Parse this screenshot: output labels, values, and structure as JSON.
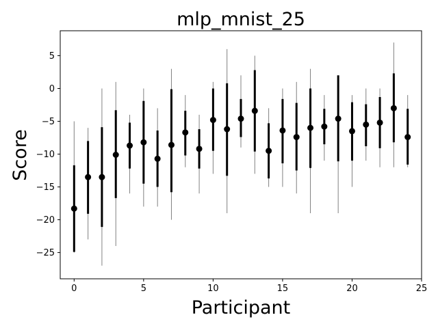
{
  "chart_data": {
    "type": "scatter",
    "title": "mlp_mnist_25",
    "xlabel": "Participant",
    "ylabel": "Score",
    "xlim": [
      -1,
      25
    ],
    "ylim": [
      -29,
      8.8
    ],
    "xticks": [
      0,
      5,
      10,
      15,
      20,
      25
    ],
    "yticks": [
      -25,
      -20,
      -15,
      -10,
      -5,
      0,
      5
    ],
    "grid": false,
    "series": [
      {
        "marker_color": "#000000",
        "range_color": "#808080",
        "iqr_color": "#000000",
        "points": [
          {
            "x": 0,
            "mean": -18.3,
            "min": -25,
            "max": -5,
            "q1": -24.9,
            "q3": -11.7
          },
          {
            "x": 1,
            "mean": -13.5,
            "min": -23,
            "max": -6,
            "q1": -19.1,
            "q3": -8
          },
          {
            "x": 2,
            "mean": -13.5,
            "min": -27,
            "max": 0,
            "q1": -21.1,
            "q3": -5.9
          },
          {
            "x": 3,
            "mean": -10.1,
            "min": -24,
            "max": 1,
            "q1": -16.7,
            "q3": -3.3
          },
          {
            "x": 4,
            "mean": -8.7,
            "min": -16,
            "max": -4,
            "q1": -12.2,
            "q3": -5.2
          },
          {
            "x": 5,
            "mean": -8.2,
            "min": -18,
            "max": 0,
            "q1": -14.5,
            "q3": -1.9
          },
          {
            "x": 6,
            "mean": -10.7,
            "min": -18,
            "max": -3,
            "q1": -15,
            "q3": -6.4
          },
          {
            "x": 7,
            "mean": -8.6,
            "min": -20,
            "max": 3,
            "q1": -15.8,
            "q3": -0.1
          },
          {
            "x": 8,
            "mean": -6.7,
            "min": -12,
            "max": -1,
            "q1": -10.2,
            "q3": -3.4
          },
          {
            "x": 9,
            "mean": -9.2,
            "min": -16,
            "max": -4,
            "q1": -12.2,
            "q3": -6.2
          },
          {
            "x": 10,
            "mean": -4.8,
            "min": -13,
            "max": 1,
            "q1": -9.5,
            "q3": 0
          },
          {
            "x": 11,
            "mean": -6.2,
            "min": -19,
            "max": 6,
            "q1": -13.3,
            "q3": 0.8
          },
          {
            "x": 12,
            "mean": -4.6,
            "min": -9,
            "max": 2,
            "q1": -7.4,
            "q3": -1.6
          },
          {
            "x": 13,
            "mean": -3.4,
            "min": -13,
            "max": 5,
            "q1": -9.6,
            "q3": 2.8
          },
          {
            "x": 14,
            "mean": -9.5,
            "min": -15,
            "max": -3,
            "q1": -13.7,
            "q3": -5.3
          },
          {
            "x": 15,
            "mean": -6.4,
            "min": -15,
            "max": 0,
            "q1": -11.4,
            "q3": -1.6
          },
          {
            "x": 16,
            "mean": -7.4,
            "min": -16,
            "max": 1,
            "q1": -12.5,
            "q3": -2.2
          },
          {
            "x": 17,
            "mean": -6,
            "min": -19,
            "max": 3,
            "q1": -12.1,
            "q3": 0
          },
          {
            "x": 18,
            "mean": -5.8,
            "min": -11,
            "max": -1,
            "q1": -8.5,
            "q3": -3.1
          },
          {
            "x": 19,
            "mean": -4.6,
            "min": -19,
            "max": 2,
            "q1": -11.1,
            "q3": 2
          },
          {
            "x": 20,
            "mean": -6.5,
            "min": -15,
            "max": -1,
            "q1": -11,
            "q3": -2.1
          },
          {
            "x": 21,
            "mean": -5.5,
            "min": -11,
            "max": 0,
            "q1": -8.8,
            "q3": -2.4
          },
          {
            "x": 22,
            "mean": -5.2,
            "min": -12,
            "max": 0,
            "q1": -9.1,
            "q3": -1.3
          },
          {
            "x": 23,
            "mean": -3,
            "min": -12,
            "max": 7,
            "q1": -8.2,
            "q3": 2.3
          },
          {
            "x": 24,
            "mean": -7.4,
            "min": -12,
            "max": -1,
            "q1": -11.6,
            "q3": -3.1
          }
        ]
      }
    ]
  }
}
